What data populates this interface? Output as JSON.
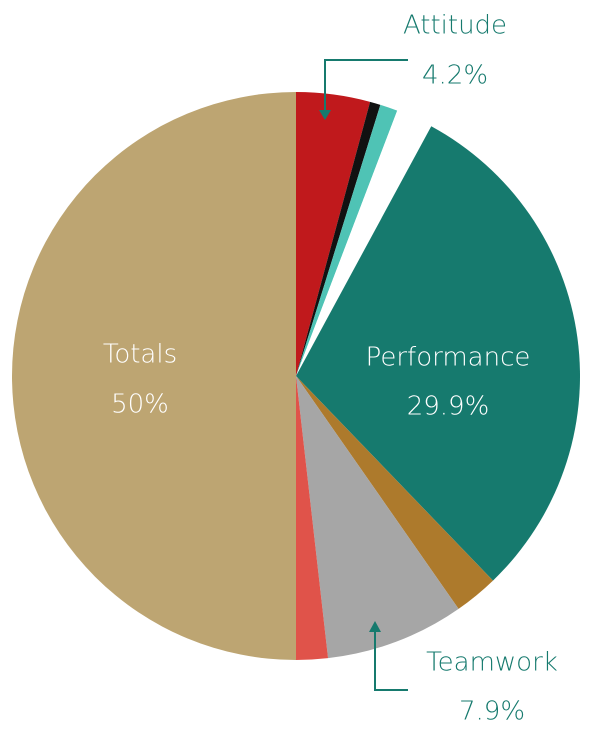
{
  "chart_data": {
    "type": "pie",
    "categories": [
      "Attitude",
      null,
      null,
      null,
      "Performance",
      null,
      "Teamwork",
      null,
      "Totals"
    ],
    "values": [
      4.2,
      0.6,
      1.0,
      2.1,
      29.9,
      2.5,
      7.9,
      1.8,
      50
    ],
    "value_labels": [
      "4.2%",
      null,
      null,
      null,
      "29.9%",
      null,
      "7.9%",
      null,
      "50%"
    ],
    "colors": [
      "#c0191c",
      "#111111",
      "#4fc3b5",
      "#ffffff",
      "#167a6e",
      "#ad7a2c",
      "#a6a6a6",
      "#e0534a",
      "#bda572"
    ]
  }
}
